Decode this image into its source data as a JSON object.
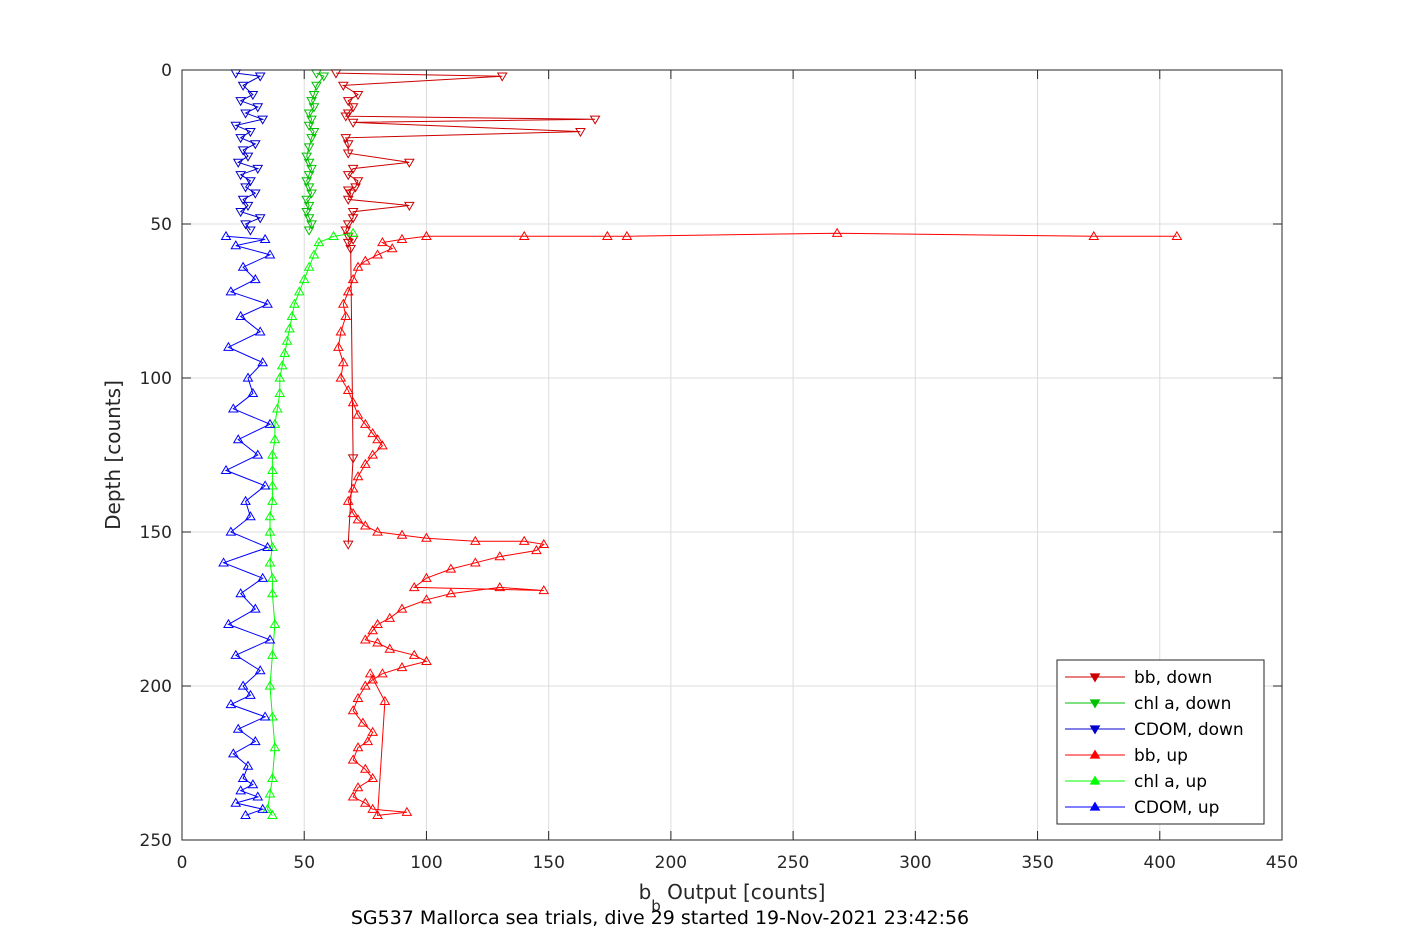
{
  "chart_data": {
    "type": "scatter",
    "title": "",
    "caption": "SG537 Mallorca sea trials, dive 29 started 19-Nov-2021 23:42:56",
    "xlabel_main": "b",
    "xlabel_sub": "b",
    "xlabel_rest": " Output [counts]",
    "ylabel": "Depth [counts]",
    "xlim": [
      0,
      450
    ],
    "ylim": [
      0,
      250
    ],
    "y_reversed": true,
    "grid": true,
    "legend_position": "bottom-right",
    "xticks": [
      0,
      50,
      100,
      150,
      200,
      250,
      300,
      350,
      400,
      450
    ],
    "xtick_labels": [
      "0",
      "50",
      "100",
      "150",
      "200",
      "250",
      "300",
      "350",
      "400",
      "450"
    ],
    "yticks": [
      0,
      50,
      100,
      150,
      200,
      250
    ],
    "ytick_labels": [
      "0",
      "50",
      "100",
      "150",
      "200",
      "250"
    ],
    "series": [
      {
        "name": "bb, down",
        "color": "#cc0000",
        "marker": "triangle-down",
        "x": [
          63,
          131,
          66,
          72,
          68,
          70,
          68,
          67,
          169,
          70,
          163,
          67,
          68,
          68,
          93,
          70,
          68,
          72,
          71,
          68,
          69,
          68,
          93,
          70,
          70,
          68,
          67,
          68,
          70,
          68,
          69,
          70,
          68
        ],
        "y": [
          1,
          2,
          5,
          8,
          10,
          12,
          14,
          15,
          16,
          17,
          20,
          22,
          24,
          27,
          30,
          32,
          34,
          36,
          38,
          39,
          40,
          42,
          44,
          46,
          48,
          50,
          52,
          54,
          55,
          56,
          58,
          126,
          154
        ]
      },
      {
        "name": "chl a, down",
        "color": "#00c000",
        "marker": "triangle-down",
        "x": [
          55,
          58,
          55,
          54,
          53,
          54,
          52,
          53,
          52,
          54,
          53,
          52,
          51,
          52,
          53,
          52,
          51,
          52,
          53,
          51,
          52,
          51,
          52,
          53,
          52
        ],
        "y": [
          1,
          2,
          5,
          8,
          10,
          12,
          14,
          16,
          18,
          20,
          22,
          25,
          28,
          30,
          32,
          34,
          36,
          38,
          40,
          42,
          44,
          46,
          48,
          50,
          52
        ]
      },
      {
        "name": "CDOM, down",
        "color": "#0000cc",
        "marker": "triangle-down",
        "x": [
          22,
          32,
          25,
          29,
          24,
          31,
          26,
          33,
          22,
          28,
          24,
          30,
          25,
          27,
          23,
          31,
          24,
          28,
          26,
          30,
          25,
          27,
          24,
          32,
          26,
          28
        ],
        "y": [
          1,
          2,
          5,
          8,
          10,
          12,
          14,
          16,
          18,
          20,
          22,
          24,
          26,
          28,
          30,
          32,
          34,
          36,
          38,
          40,
          42,
          44,
          46,
          48,
          50,
          52
        ]
      },
      {
        "name": "bb, up",
        "color": "#ff0000",
        "marker": "triangle-up",
        "x": [
          407,
          373,
          268,
          182,
          174,
          140,
          100,
          90,
          82,
          86,
          80,
          75,
          72,
          70,
          68,
          66,
          67,
          65,
          64,
          66,
          65,
          68,
          70,
          72,
          75,
          78,
          80,
          82,
          78,
          75,
          72,
          70,
          68,
          70,
          72,
          75,
          80,
          90,
          100,
          120,
          140,
          148,
          145,
          130,
          120,
          110,
          100,
          95,
          148,
          130,
          110,
          100,
          90,
          85,
          80,
          78,
          75,
          80,
          85,
          95,
          100,
          90,
          82,
          78,
          75,
          72,
          70,
          74,
          78,
          76,
          72,
          70,
          75,
          78,
          72,
          70,
          75,
          78,
          92,
          80,
          83,
          77
        ],
        "y": [
          54,
          54,
          53,
          54,
          54,
          54,
          54,
          55,
          56,
          58,
          60,
          62,
          64,
          68,
          72,
          76,
          80,
          85,
          90,
          95,
          100,
          104,
          108,
          112,
          115,
          118,
          120,
          122,
          125,
          128,
          132,
          136,
          140,
          144,
          146,
          148,
          150,
          151,
          152,
          153,
          153,
          154,
          156,
          158,
          160,
          162,
          165,
          168,
          169,
          168,
          170,
          172,
          175,
          178,
          180,
          182,
          185,
          186,
          188,
          190,
          192,
          194,
          196,
          198,
          200,
          204,
          208,
          212,
          215,
          218,
          220,
          224,
          227,
          230,
          233,
          236,
          238,
          240,
          241,
          242,
          205,
          196
        ]
      },
      {
        "name": "chl a, up",
        "color": "#00ff00",
        "marker": "triangle-up",
        "x": [
          70,
          62,
          56,
          54,
          52,
          50,
          48,
          46,
          45,
          44,
          43,
          42,
          41,
          40,
          40,
          39,
          38,
          38,
          37,
          37,
          37,
          37,
          36,
          36,
          37,
          36,
          37,
          37,
          38,
          37,
          36,
          37,
          38,
          37,
          36,
          35,
          37
        ],
        "y": [
          53,
          54,
          56,
          60,
          64,
          68,
          72,
          76,
          80,
          84,
          88,
          92,
          96,
          100,
          105,
          110,
          115,
          120,
          125,
          130,
          135,
          140,
          145,
          150,
          155,
          160,
          165,
          170,
          180,
          190,
          200,
          210,
          220,
          230,
          235,
          240,
          242
        ]
      },
      {
        "name": "CDOM, up",
        "color": "#0000ff",
        "marker": "triangle-up",
        "x": [
          18,
          34,
          22,
          36,
          25,
          30,
          20,
          35,
          24,
          32,
          19,
          33,
          27,
          29,
          21,
          36,
          23,
          31,
          18,
          34,
          26,
          28,
          20,
          35,
          17,
          33,
          24,
          30,
          19,
          36,
          22,
          32,
          25,
          28,
          20,
          34,
          23,
          30,
          21,
          27,
          25,
          29,
          24,
          31,
          22,
          33,
          26
        ],
        "y": [
          54,
          55,
          57,
          60,
          64,
          68,
          72,
          76,
          80,
          85,
          90,
          95,
          100,
          105,
          110,
          115,
          120,
          125,
          130,
          135,
          140,
          145,
          150,
          155,
          160,
          165,
          170,
          175,
          180,
          185,
          190,
          195,
          200,
          203,
          206,
          210,
          214,
          218,
          222,
          226,
          230,
          232,
          234,
          236,
          238,
          240,
          242
        ]
      }
    ]
  }
}
